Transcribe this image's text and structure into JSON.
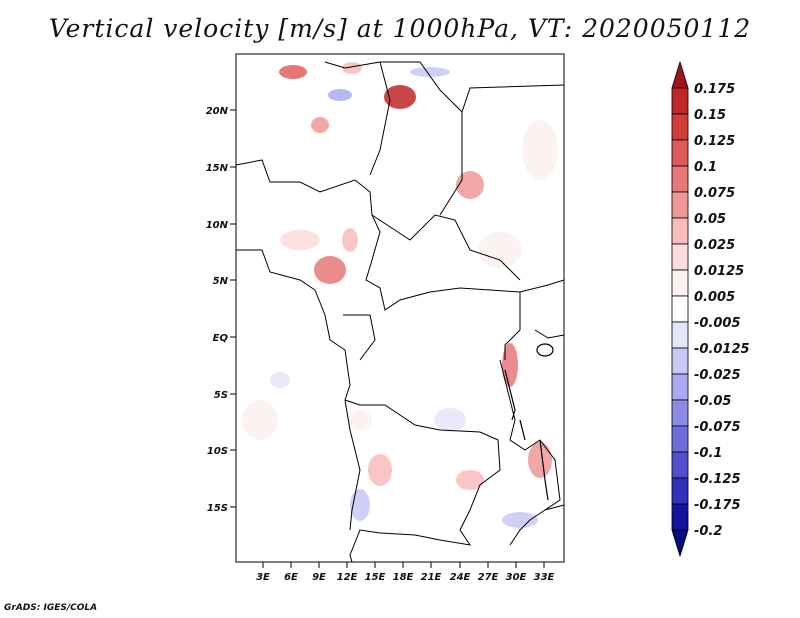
{
  "title": "Vertical velocity [m/s] at 1000hPa, VT: 2020050112",
  "credit": "GrADS: IGES/COLA",
  "map": {
    "lat_labels": [
      "20N",
      "15N",
      "10N",
      "5N",
      "EQ",
      "5S",
      "10S",
      "15S"
    ],
    "lon_labels": [
      "3E",
      "6E",
      "9E",
      "12E",
      "15E",
      "18E",
      "21E",
      "24E",
      "27E",
      "30E",
      "33E"
    ]
  },
  "colorbar": {
    "levels": [
      "0.175",
      "0.15",
      "0.125",
      "0.1",
      "0.075",
      "0.05",
      "0.025",
      "0.0125",
      "0.005",
      "-0.005",
      "-0.0125",
      "-0.025",
      "-0.05",
      "-0.075",
      "-0.1",
      "-0.125",
      "-0.175",
      "-0.2"
    ],
    "colors": [
      "#a0141e",
      "#c02828",
      "#d43c3c",
      "#e05a5a",
      "#e87878",
      "#f09898",
      "#f8bcbc",
      "#fcdcdc",
      "#fdf0f0",
      "#ffffff",
      "#e6e6fa",
      "#c8c8f5",
      "#aaaaf0",
      "#8c8ce6",
      "#6e6edc",
      "#5050cd",
      "#3232be",
      "#1414a0",
      "#0a0a82"
    ]
  }
}
